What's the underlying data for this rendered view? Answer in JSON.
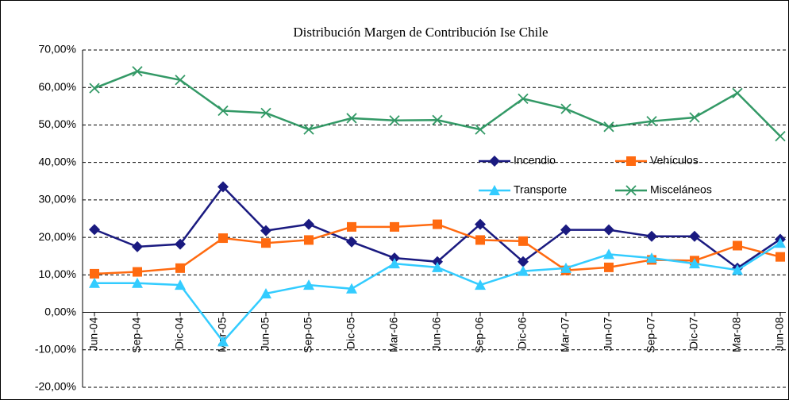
{
  "chart_data": {
    "type": "line",
    "title": "Distribución Margen de Contribución Ise Chile",
    "categories": [
      "Jun-04",
      "Sep-04",
      "Dic-04",
      "Mar-05",
      "Jun-05",
      "Sep-05",
      "Dic-05",
      "Mar-06",
      "Jun-06",
      "Sep-06",
      "Dic-06",
      "Mar-07",
      "Jun-07",
      "Sep-07",
      "Dic-07",
      "Mar-08",
      "Jun-08"
    ],
    "series": [
      {
        "name": "Incendio",
        "color": "#1a1a80",
        "marker": "diamond",
        "values": [
          22.1,
          17.5,
          18.2,
          33.5,
          21.8,
          23.5,
          18.8,
          14.5,
          13.5,
          23.5,
          13.5,
          22.0,
          22.0,
          20.3,
          20.3,
          11.8,
          19.5
        ]
      },
      {
        "name": "Vehículos",
        "color": "#ff6a10",
        "marker": "square",
        "values": [
          10.3,
          10.8,
          11.8,
          19.8,
          18.5,
          19.3,
          22.8,
          22.8,
          23.5,
          19.3,
          19.0,
          11.2,
          12.0,
          14.0,
          13.8,
          17.8,
          14.8
        ]
      },
      {
        "name": "Transporte",
        "color": "#33ccff",
        "marker": "triangle",
        "values": [
          7.8,
          7.8,
          7.3,
          -7.8,
          5.0,
          7.3,
          6.3,
          13.0,
          12.0,
          7.3,
          11.0,
          11.8,
          15.5,
          14.5,
          13.0,
          11.3,
          18.5
        ]
      },
      {
        "name": "Misceláneos",
        "color": "#339966",
        "marker": "x",
        "values": [
          59.8,
          64.3,
          62.0,
          53.8,
          53.2,
          48.8,
          51.8,
          51.2,
          51.3,
          48.8,
          57.0,
          54.3,
          49.5,
          51.0,
          52.0,
          58.5,
          47.0
        ]
      }
    ],
    "ylim": [
      -20,
      70
    ],
    "yticks": [
      {
        "value": -20,
        "label": "-20,00%"
      },
      {
        "value": -10,
        "label": "-10,00%"
      },
      {
        "value": 0,
        "label": "0,00%"
      },
      {
        "value": 10,
        "label": "10,00%"
      },
      {
        "value": 20,
        "label": "20,00%"
      },
      {
        "value": 30,
        "label": "30,00%"
      },
      {
        "value": 40,
        "label": "40,00%"
      },
      {
        "value": 50,
        "label": "50,00%"
      },
      {
        "value": 60,
        "label": "60,00%"
      },
      {
        "value": 70,
        "label": "70,00%"
      }
    ],
    "grid": true
  }
}
